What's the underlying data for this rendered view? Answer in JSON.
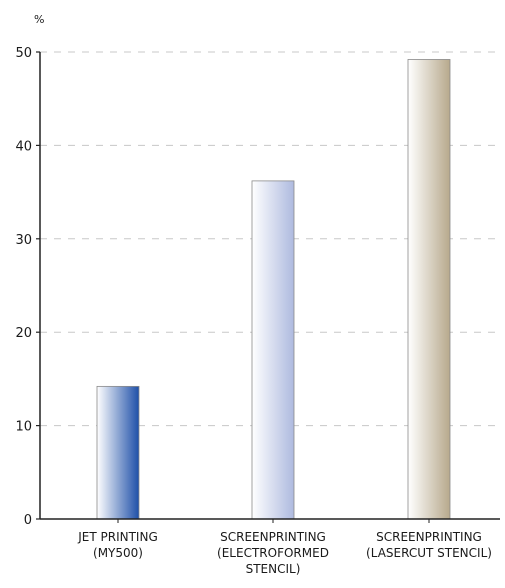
{
  "chart_data": {
    "type": "bar",
    "ylabel": "%",
    "ylim": [
      0,
      50
    ],
    "yticks": [
      "0",
      "10",
      "20",
      "30",
      "40",
      "50"
    ],
    "grid": "horizontal dashed",
    "categories": [
      [
        "JET PRINTING",
        "(MY500)"
      ],
      [
        "SCREENPRINTING",
        "(ELECTROFORMED",
        "STENCIL)"
      ],
      [
        "SCREENPRINTING",
        "(LASERCUT STENCIL)"
      ]
    ],
    "values": [
      14.2,
      36.2,
      49.2
    ],
    "bar_colors": [
      [
        "#ffffff",
        "#1e4fa8"
      ],
      [
        "#ffffff",
        "#aebadf"
      ],
      [
        "#ffffff",
        "#b7a98c"
      ]
    ]
  }
}
